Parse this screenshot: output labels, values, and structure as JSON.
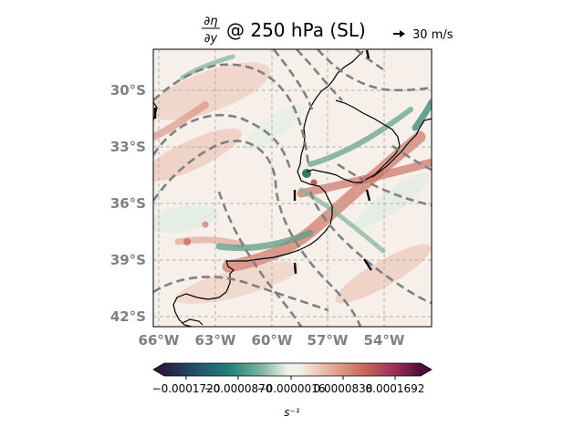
{
  "title": {
    "frac_num": "∂η",
    "frac_den": "∂y",
    "text": "@ 250 hPa (SL)"
  },
  "quiver_key": {
    "label": "30 m/s"
  },
  "map": {
    "lat_labels": [
      "30°S",
      "33°S",
      "36°S",
      "39°S",
      "42°S"
    ],
    "lon_labels": [
      "66°W",
      "63°W",
      "60°W",
      "57°W",
      "54°W"
    ],
    "lat_values": [
      -30,
      -33,
      -36,
      -39,
      -42
    ],
    "lon_values": [
      -66,
      -63,
      -60,
      -57,
      -54
    ],
    "extent": {
      "lon_min": -66.3,
      "lon_max": -51.5,
      "lat_min": -42.5,
      "lat_max": -27.8
    },
    "label_color": "#808080",
    "contour_color": "#808080",
    "grid_color": "#b0b0b0"
  },
  "colorbar": {
    "tick_labels": [
      "−0.0001720",
      "−0.0000870",
      "−0.0000016",
      "0.0000838",
      "0.0001692"
    ],
    "unit": "s⁻¹",
    "colors": [
      "#2a1c3f",
      "#22506a",
      "#1f7f78",
      "#7fb59c",
      "#e9efe3",
      "#f6efe9",
      "#e3ad97",
      "#c9685b",
      "#9c2e55",
      "#4b0f3a"
    ]
  }
}
